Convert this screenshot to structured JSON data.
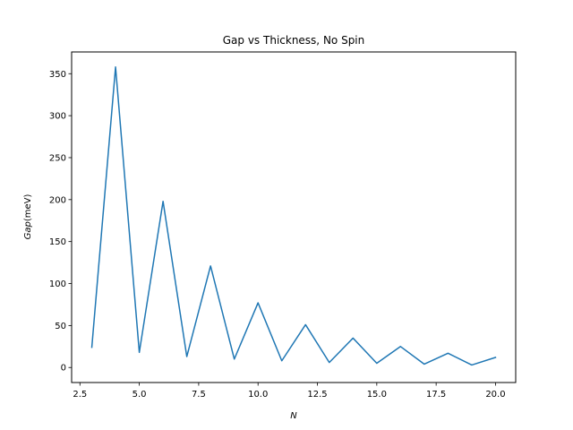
{
  "chart_data": {
    "type": "line",
    "title": "Gap vs Thickness, No Spin",
    "xlabel": "N",
    "ylabel_italic": "Gap",
    "ylabel_unit": "(meV)",
    "xlim": [
      2.15,
      20.85
    ],
    "ylim": [
      -17.9,
      375.9
    ],
    "x_ticks": [
      2.5,
      5.0,
      7.5,
      10.0,
      12.5,
      15.0,
      17.5,
      20.0
    ],
    "x_tick_labels": [
      "2.5",
      "5.0",
      "7.5",
      "10.0",
      "12.5",
      "15.0",
      "17.5",
      "20.0"
    ],
    "y_ticks": [
      0,
      50,
      100,
      150,
      200,
      250,
      300,
      350
    ],
    "y_tick_labels": [
      "0",
      "50",
      "100",
      "150",
      "200",
      "250",
      "300",
      "350"
    ],
    "grid": false,
    "series": [
      {
        "color": "#1f77b4",
        "x": [
          3,
          4,
          5,
          6,
          7,
          8,
          9,
          10,
          11,
          12,
          13,
          14,
          15,
          16,
          17,
          18,
          19,
          20
        ],
        "y": [
          24,
          358,
          18,
          198,
          13,
          121,
          10,
          77,
          8,
          51,
          6,
          35,
          5,
          25,
          4,
          17,
          3,
          12
        ]
      }
    ]
  }
}
